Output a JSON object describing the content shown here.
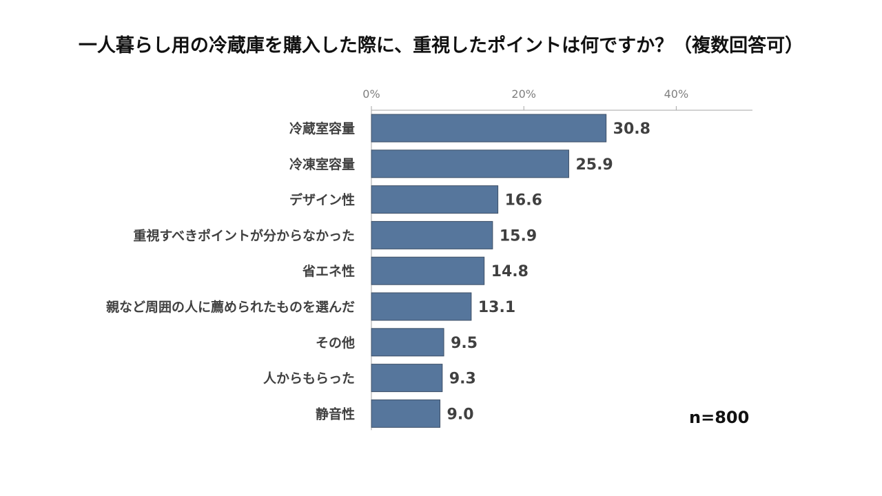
{
  "chart_data": {
    "type": "bar",
    "orientation": "horizontal",
    "title": "一人暮らし用の冷蔵庫を購入した際に、重視したポイントは何ですか？（複数回答可）",
    "categories": [
      "冷蔵室容量",
      "冷凍室容量",
      "デザイン性",
      "重視すべきポイントが分からなかった",
      "省エネ性",
      "親など周囲の人に薦められたものを選んだ",
      "その他",
      "人からもらった",
      "静音性"
    ],
    "values": [
      30.8,
      25.9,
      16.6,
      15.9,
      14.8,
      13.1,
      9.5,
      9.3,
      9.0
    ],
    "value_labels": [
      "30.8",
      "25.9",
      "16.6",
      "15.9",
      "14.8",
      "13.1",
      "9.5",
      "9.3",
      "9.0"
    ],
    "xlim": [
      0,
      50
    ],
    "ticks": [
      0,
      20,
      40
    ],
    "tick_labels": [
      "0%",
      "20%",
      "40%"
    ],
    "axis_position": "top",
    "grid": false,
    "bar_color": "#56769c",
    "bar_edge_color": "#3d4f66",
    "sample_size": "n=800"
  }
}
